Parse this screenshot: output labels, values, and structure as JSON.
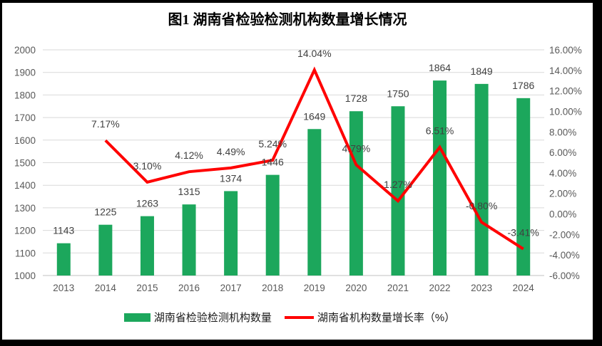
{
  "title": "图1 湖南省检验检测机构数量增长情况",
  "chart_data": {
    "type": "combo",
    "categories": [
      "2013",
      "2014",
      "2015",
      "2016",
      "2017",
      "2018",
      "2019",
      "2020",
      "2021",
      "2022",
      "2023",
      "2024"
    ],
    "series": [
      {
        "name": "湖南省检验检测机构数量",
        "type": "bar",
        "color": "#1CA75C",
        "values": [
          1143,
          1225,
          1263,
          1315,
          1374,
          1446,
          1649,
          1728,
          1750,
          1864,
          1849,
          1786
        ]
      },
      {
        "name": "湖南省机构数量增长率（%）",
        "type": "line",
        "color": "#FF0000",
        "values": [
          null,
          7.17,
          3.1,
          4.12,
          4.49,
          5.24,
          14.04,
          4.79,
          1.27,
          6.51,
          -0.8,
          -3.41
        ]
      }
    ],
    "left_axis": {
      "min": 1000,
      "max": 2000,
      "step": 100
    },
    "right_axis": {
      "min": -6,
      "max": 16,
      "step": 2,
      "format": "percent2"
    },
    "grid": true,
    "legend_position": "bottom",
    "colors": {
      "grid": "#D9D9D9",
      "axis_line": "#C0C0C0",
      "axis_text": "#595959",
      "data_label": "#404040"
    }
  }
}
